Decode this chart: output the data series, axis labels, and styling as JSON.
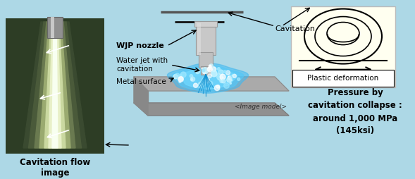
{
  "bg_color": "#add8e6",
  "fig_width": 5.89,
  "fig_height": 2.54,
  "photo_bg_dark": "#2a3a20",
  "photo_bg_mid": "#3a4a30",
  "nozzle_color": "#c8c8c8",
  "plate_top_color": "#aaaaaa",
  "plate_side_color": "#888888",
  "water_color": "#40b8f0",
  "yellow_box_color": "#fffff0",
  "label_wjp": "WJP nozzle",
  "label_water": "Water jet with\ncavitation",
  "label_metal": "Metal surface",
  "label_cavitation": "Cavitation",
  "label_plastic": "Plastic deformation",
  "label_flow": "Cavitation flow\nimage",
  "label_pressure": "Pressure by\ncavitation collapse :\naround 1,000 MPa\n(145ksi)",
  "label_model": "<Image model>"
}
